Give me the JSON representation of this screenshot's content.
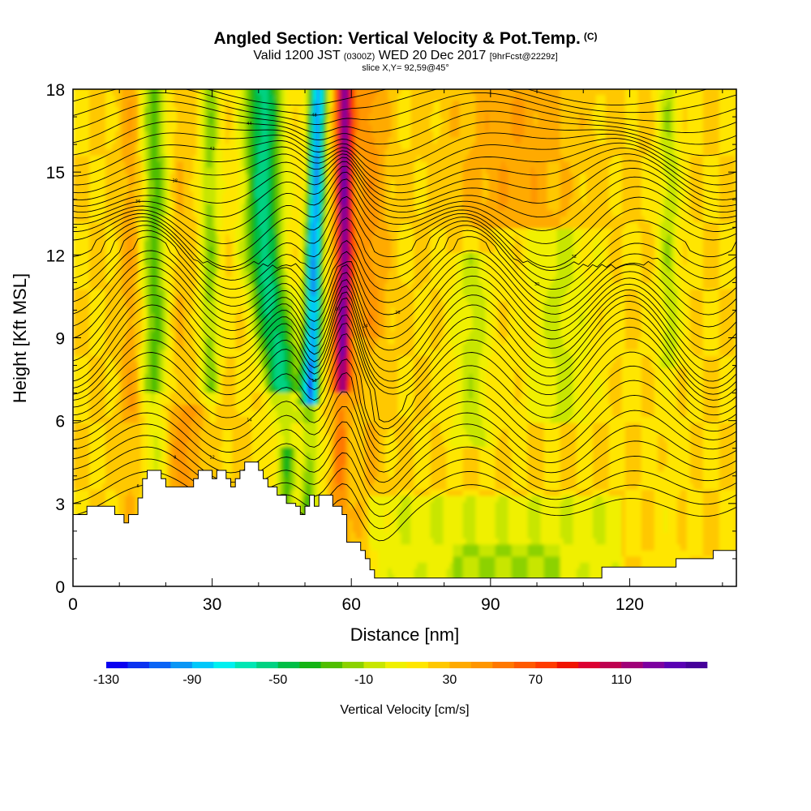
{
  "title": "Angled Section: Vertical Velocity & Pot.Temp.",
  "title_mark": "(C)",
  "subtitle_pre": "Valid 1200 JST",
  "subtitle_zulu": "(0300Z)",
  "subtitle_mid": "WED 20 Dec 2017",
  "subtitle_fcst": "[9hrFcst@2229z]",
  "slice_info": "slice X,Y= 92,59@45°",
  "chart_data": {
    "type": "heatmap",
    "title": "Angled Section: Vertical Velocity & Pot.Temp.",
    "xlabel": "Distance [nm]",
    "ylabel": "Height [Kft MSL]",
    "xlim": [
      0,
      143
    ],
    "ylim": [
      0,
      18
    ],
    "x_ticks": [
      0,
      30,
      60,
      90,
      120
    ],
    "y_ticks": [
      0,
      3,
      6,
      9,
      12,
      15,
      18
    ],
    "colorbar": {
      "label": "Vertical Velocity [cm/s]",
      "ticks": [
        -130,
        -90,
        -50,
        -10,
        30,
        70,
        110
      ],
      "range": [
        -130,
        150
      ],
      "step": 10,
      "colors": [
        "#0a00f0",
        "#0a32f0",
        "#0a64f5",
        "#0a96f5",
        "#00c8fa",
        "#00f0f0",
        "#00e6b4",
        "#00d282",
        "#00be46",
        "#14b414",
        "#50be00",
        "#8cd200",
        "#c8e600",
        "#f0f000",
        "#ffe600",
        "#ffc800",
        "#ffaa00",
        "#ff9600",
        "#ff7800",
        "#ff5a00",
        "#ff3c00",
        "#f01400",
        "#dc0032",
        "#be0050",
        "#a00078",
        "#7d00a0",
        "#5a00b4",
        "#46009b"
      ]
    },
    "terrain": {
      "x": [
        0,
        2,
        3,
        8,
        9,
        10,
        11,
        12,
        13,
        14,
        15,
        16,
        18,
        19,
        20,
        23,
        24,
        26,
        27,
        28,
        29,
        30,
        31,
        32,
        33,
        34,
        35,
        36,
        37,
        38,
        39,
        40,
        41,
        42,
        43,
        44,
        45,
        46,
        47,
        48,
        49,
        50,
        51,
        52,
        53,
        54,
        55,
        56,
        57,
        58,
        59,
        60,
        61,
        62,
        63,
        64,
        65,
        66,
        67,
        68,
        70,
        75,
        80,
        90,
        100,
        105,
        113,
        114,
        120,
        128,
        129,
        130,
        131,
        137,
        138,
        143
      ],
      "height_kft": [
        2.6,
        2.6,
        2.9,
        2.9,
        2.6,
        2.6,
        2.3,
        2.6,
        2.6,
        3.2,
        3.9,
        4.2,
        4.2,
        3.9,
        3.6,
        3.6,
        3.6,
        3.9,
        4.2,
        4.2,
        4.2,
        3.9,
        4.2,
        4.2,
        3.9,
        3.6,
        3.9,
        4.2,
        4.5,
        4.5,
        4.5,
        4.2,
        3.9,
        3.6,
        3.6,
        3.3,
        3.3,
        3.0,
        3.0,
        2.9,
        2.6,
        2.9,
        3.3,
        2.9,
        3.3,
        3.3,
        3.3,
        2.9,
        2.9,
        2.6,
        1.6,
        1.6,
        1.6,
        1.3,
        1.0,
        0.6,
        0.3,
        0.3,
        0.3,
        0.3,
        0.3,
        0.3,
        0.3,
        0.3,
        0.3,
        0.3,
        0.3,
        0.7,
        0.7,
        0.7,
        0.7,
        1.0,
        1.0,
        1.0,
        1.3,
        1.3
      ]
    },
    "isentrope_label_values": [
      "6",
      "8",
      "10",
      "12",
      "14",
      "16",
      "18",
      "20",
      "22",
      "24",
      "26",
      "28",
      "30",
      "32",
      "34",
      "36",
      "38",
      "40",
      "42",
      "44",
      "46",
      "48",
      "50",
      "52",
      "54",
      "56"
    ]
  }
}
